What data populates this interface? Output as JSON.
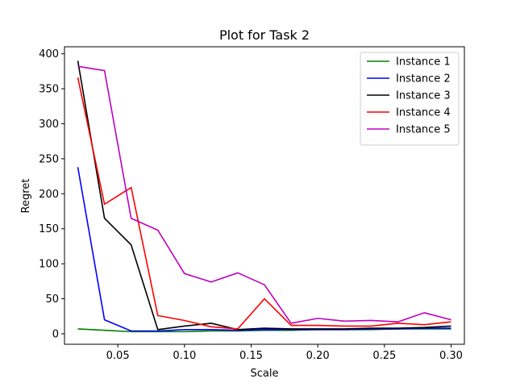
{
  "chart_data": {
    "type": "line",
    "title": "Plot for Task 2",
    "xlabel": "Scale",
    "ylabel": "Regret",
    "xlim": [
      0.01,
      0.31
    ],
    "ylim": [
      -15,
      410
    ],
    "x_ticks": [
      0.05,
      0.1,
      0.15,
      0.2,
      0.25,
      0.3
    ],
    "x_tick_labels": [
      "0.05",
      "0.10",
      "0.15",
      "0.20",
      "0.25",
      "0.30"
    ],
    "y_ticks": [
      0,
      50,
      100,
      150,
      200,
      250,
      300,
      350,
      400
    ],
    "y_tick_labels": [
      "0",
      "50",
      "100",
      "150",
      "200",
      "250",
      "300",
      "350",
      "400"
    ],
    "grid": false,
    "legend_position": "top-right",
    "x": [
      0.02,
      0.04,
      0.06,
      0.08,
      0.1,
      0.12,
      0.14,
      0.16,
      0.18,
      0.2,
      0.22,
      0.24,
      0.26,
      0.28,
      0.3
    ],
    "series": [
      {
        "name": "Instance 1",
        "color": "#008000",
        "values": [
          7,
          5,
          3,
          3,
          3,
          4,
          4,
          5,
          5,
          6,
          6,
          6,
          7,
          7,
          7
        ]
      },
      {
        "name": "Instance 2",
        "color": "#0000ff",
        "values": [
          238,
          20,
          4,
          4,
          6,
          6,
          5,
          6,
          6,
          6,
          6,
          7,
          7,
          8,
          8
        ]
      },
      {
        "name": "Instance 3",
        "color": "#000000",
        "values": [
          390,
          165,
          127,
          6,
          11,
          15,
          6,
          8,
          7,
          7,
          7,
          8,
          8,
          9,
          11
        ]
      },
      {
        "name": "Instance 4",
        "color": "#ff0000",
        "values": [
          366,
          185,
          209,
          26,
          19,
          10,
          7,
          50,
          12,
          12,
          11,
          11,
          15,
          13,
          17
        ]
      },
      {
        "name": "Instance 5",
        "color": "#bf00bf",
        "values": [
          382,
          376,
          165,
          148,
          86,
          74,
          87,
          70,
          15,
          22,
          18,
          19,
          17,
          30,
          20
        ]
      }
    ]
  }
}
